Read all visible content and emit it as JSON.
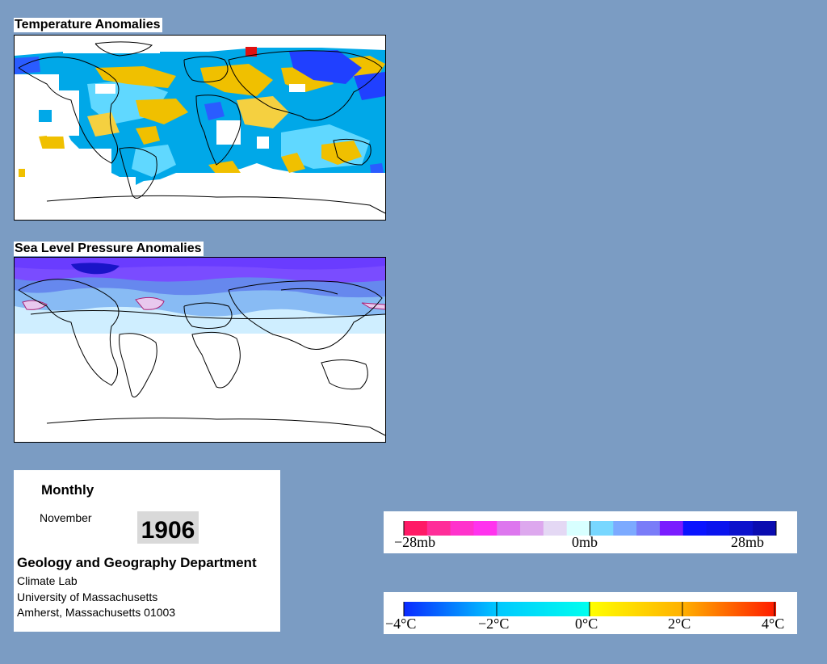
{
  "maps": {
    "temperature": {
      "title": "Temperature Anomalies"
    },
    "pressure": {
      "title": "Sea Level Pressure Anomalies"
    }
  },
  "info": {
    "period": "Monthly",
    "month": "November",
    "year": "1906",
    "department": "Geology and Geography Department",
    "lab": "Climate Lab",
    "university": "University of Massachusetts",
    "address": "Amherst, Massachusetts 01003"
  },
  "legends": {
    "pressure": {
      "labels": [
        "−28mb",
        "0mb",
        "28mb"
      ],
      "colors": [
        "#ff1a66",
        "#ff2e99",
        "#ff33cc",
        "#ff33ee",
        "#dd77ee",
        "#dda8ee",
        "#e4d8f4",
        "#d8ffff",
        "#78d7ff",
        "#7caaff",
        "#7a7cf8",
        "#7a1cff",
        "#0a14ff",
        "#0a14ee",
        "#0c12cc",
        "#0a0cb0"
      ]
    },
    "temperature": {
      "labels": [
        "−4°C",
        "−2°C",
        "0°C",
        "2°C",
        "4°C"
      ],
      "stops": [
        "#0a2aff",
        "#00c8ff",
        "#00ffee",
        "#ffff00",
        "#ffb000",
        "#ff1a00"
      ]
    }
  },
  "colors": {
    "background": "#7b9cc3",
    "temp_cool": "#00a8e8",
    "temp_cold": "#2040ff",
    "temp_warm": "#f0c000",
    "temp_light": "#80e8ff",
    "slp_deep": "#6a3cff",
    "slp_mid": "#6688ee",
    "slp_light": "#88bbf4",
    "slp_pale": "#cfeeff"
  }
}
